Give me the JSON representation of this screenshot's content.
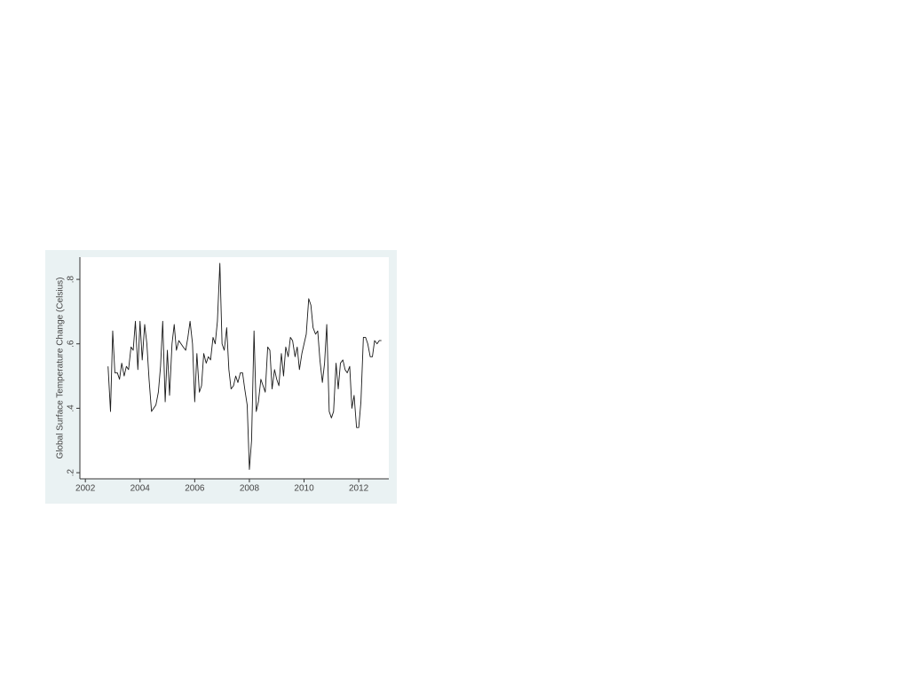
{
  "chart_data": {
    "type": "line",
    "y_label": "Global Surface Temperature Change (Celsius)",
    "x": [
      2002.83,
      2002.92,
      2003.0,
      2003.08,
      2003.17,
      2003.25,
      2003.33,
      2003.42,
      2003.5,
      2003.58,
      2003.67,
      2003.75,
      2003.83,
      2003.92,
      2004.0,
      2004.08,
      2004.17,
      2004.25,
      2004.33,
      2004.42,
      2004.5,
      2004.58,
      2004.67,
      2004.75,
      2004.83,
      2004.92,
      2005.0,
      2005.08,
      2005.17,
      2005.25,
      2005.33,
      2005.42,
      2005.5,
      2005.58,
      2005.67,
      2005.75,
      2005.83,
      2005.92,
      2006.0,
      2006.08,
      2006.17,
      2006.25,
      2006.33,
      2006.42,
      2006.5,
      2006.58,
      2006.67,
      2006.75,
      2006.83,
      2006.92,
      2007.0,
      2007.08,
      2007.17,
      2007.25,
      2007.33,
      2007.42,
      2007.5,
      2007.58,
      2007.67,
      2007.75,
      2007.83,
      2007.92,
      2008.0,
      2008.08,
      2008.17,
      2008.25,
      2008.33,
      2008.42,
      2008.5,
      2008.58,
      2008.67,
      2008.75,
      2008.83,
      2008.92,
      2009.0,
      2009.08,
      2009.17,
      2009.25,
      2009.33,
      2009.42,
      2009.5,
      2009.58,
      2009.67,
      2009.75,
      2009.83,
      2009.92,
      2010.0,
      2010.08,
      2010.17,
      2010.25,
      2010.33,
      2010.42,
      2010.5,
      2010.58,
      2010.67,
      2010.75,
      2010.83,
      2010.92,
      2011.0,
      2011.08,
      2011.17,
      2011.25,
      2011.33,
      2011.42,
      2011.5,
      2011.58,
      2011.67,
      2011.75,
      2011.83,
      2011.92,
      2012.0,
      2012.08,
      2012.17,
      2012.25,
      2012.33,
      2012.42,
      2012.5,
      2012.58,
      2012.67,
      2012.75,
      2012.83
    ],
    "series": [
      {
        "color": "#1a1a1a",
        "values": [
          0.53,
          0.39,
          0.64,
          0.51,
          0.51,
          0.49,
          0.54,
          0.5,
          0.53,
          0.52,
          0.59,
          0.58,
          0.67,
          0.52,
          0.67,
          0.55,
          0.66,
          0.6,
          0.49,
          0.39,
          0.4,
          0.41,
          0.45,
          0.53,
          0.67,
          0.42,
          0.58,
          0.44,
          0.6,
          0.66,
          0.58,
          0.61,
          0.6,
          0.59,
          0.58,
          0.62,
          0.67,
          0.6,
          0.42,
          0.57,
          0.45,
          0.47,
          0.57,
          0.54,
          0.56,
          0.55,
          0.62,
          0.6,
          0.67,
          0.85,
          0.6,
          0.58,
          0.65,
          0.52,
          0.46,
          0.47,
          0.5,
          0.48,
          0.51,
          0.51,
          0.46,
          0.41,
          0.21,
          0.3,
          0.64,
          0.39,
          0.42,
          0.49,
          0.47,
          0.45,
          0.59,
          0.58,
          0.46,
          0.52,
          0.49,
          0.47,
          0.57,
          0.5,
          0.59,
          0.56,
          0.62,
          0.61,
          0.56,
          0.59,
          0.52,
          0.57,
          0.6,
          0.63,
          0.74,
          0.72,
          0.65,
          0.63,
          0.64,
          0.55,
          0.48,
          0.54,
          0.66,
          0.39,
          0.37,
          0.39,
          0.54,
          0.46,
          0.54,
          0.55,
          0.52,
          0.51,
          0.53,
          0.4,
          0.44,
          0.34,
          0.34,
          0.42,
          0.62,
          0.62,
          0.6,
          0.56,
          0.56,
          0.61,
          0.6,
          0.61,
          0.61
        ]
      }
    ],
    "xlim": [
      2001.8,
      2013.1
    ],
    "xticks": [
      2002,
      2004,
      2006,
      2008,
      2010,
      2012
    ],
    "ylim": [
      0.181,
      0.869
    ],
    "yticks": [
      {
        "value": 0.2,
        "label": ".2"
      },
      {
        "value": 0.4,
        "label": ".4"
      },
      {
        "value": 0.6,
        "label": ".6"
      },
      {
        "value": 0.8,
        "label": ".8"
      }
    ]
  }
}
